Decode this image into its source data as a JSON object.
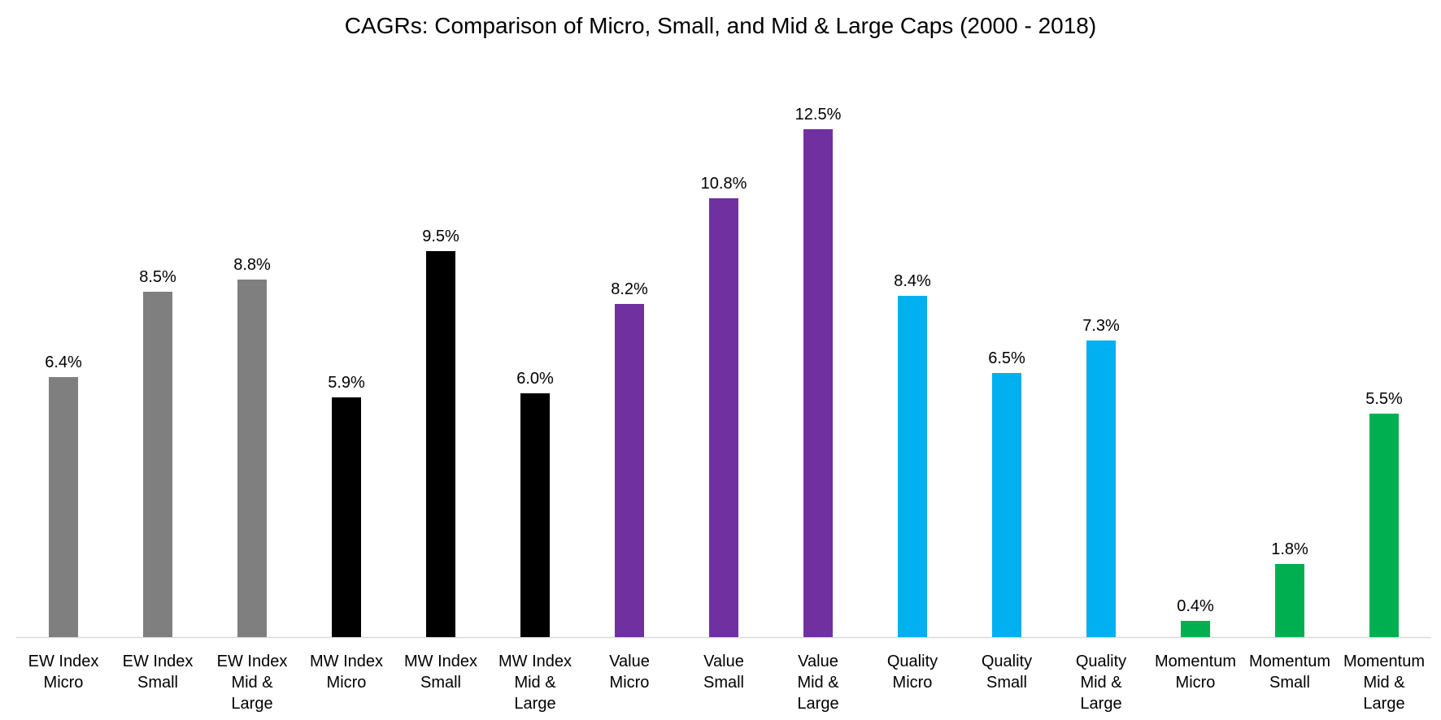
{
  "chart_data": {
    "type": "bar",
    "title": "CAGRs: Comparison of Micro, Small, and Mid & Large Caps (2000 - 2018)",
    "xlabel": "",
    "ylabel": "",
    "ylim": [
      0,
      13
    ],
    "grid": false,
    "legend": "none",
    "categories": [
      [
        "EW Index",
        "Micro"
      ],
      [
        "EW Index",
        "Small"
      ],
      [
        "EW Index",
        "Mid &",
        "Large"
      ],
      [
        "MW Index",
        "Micro"
      ],
      [
        "MW Index",
        "Small"
      ],
      [
        "MW Index",
        "Mid &",
        "Large"
      ],
      [
        "Value",
        "Micro"
      ],
      [
        "Value",
        "Small"
      ],
      [
        "Value",
        "Mid &",
        "Large"
      ],
      [
        "Quality",
        "Micro"
      ],
      [
        "Quality",
        "Small"
      ],
      [
        "Quality",
        "Mid &",
        "Large"
      ],
      [
        "Momentum",
        "Micro"
      ],
      [
        "Momentum",
        "Small"
      ],
      [
        "Momentum",
        "Mid &",
        "Large"
      ]
    ],
    "values": [
      6.4,
      8.5,
      8.8,
      5.9,
      9.5,
      6.0,
      8.2,
      10.8,
      12.5,
      8.4,
      6.5,
      7.3,
      0.4,
      1.8,
      5.5
    ],
    "value_labels": [
      "6.4%",
      "8.5%",
      "8.8%",
      "5.9%",
      "9.5%",
      "6.0%",
      "8.2%",
      "10.8%",
      "12.5%",
      "8.4%",
      "6.5%",
      "7.3%",
      "0.4%",
      "1.8%",
      "5.5%"
    ],
    "colors": [
      "#7f7f7f",
      "#7f7f7f",
      "#7f7f7f",
      "#000000",
      "#000000",
      "#000000",
      "#7030a0",
      "#7030a0",
      "#7030a0",
      "#00b0f0",
      "#00b0f0",
      "#00b0f0",
      "#00b050",
      "#00b050",
      "#00b050"
    ]
  }
}
